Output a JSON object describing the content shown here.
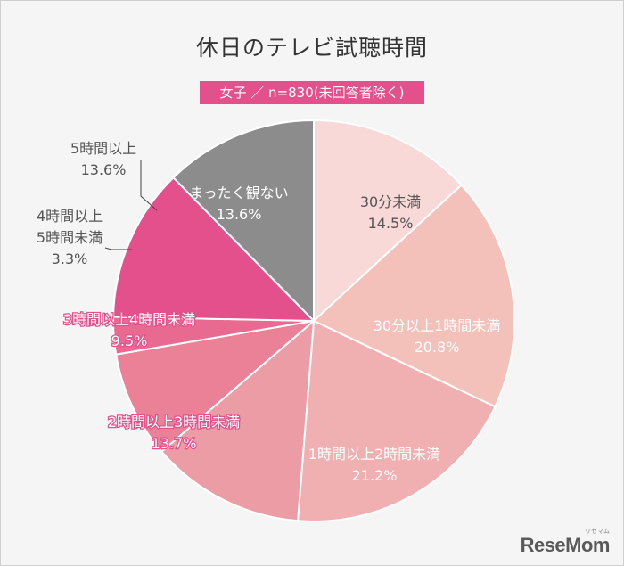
{
  "title": "休日のテレビ試聴時間",
  "subtitle": "女子 ／ n=830(未回答者除く)",
  "logo": "ReseMom",
  "logo_sub": "リセマム",
  "chart_data": {
    "type": "pie",
    "title": "休日のテレビ試聴時間",
    "subtitle": "女子 ／ n=830(未回答者除く)",
    "unit": "%",
    "start_angle_deg": 0,
    "direction": "clockwise",
    "slices": [
      {
        "label": "30分未満",
        "value": 14.5,
        "value_label": "14.5%",
        "color": "#f8d9d8"
      },
      {
        "label": "30分以上1時間未満",
        "value": 20.8,
        "value_label": "20.8%",
        "color": "#f3c1ba"
      },
      {
        "label": "1時間以上2時間未満",
        "value": 21.2,
        "value_label": "21.2%",
        "color": "#f0b0b1"
      },
      {
        "label": "2時間以上3時間未満",
        "value": 13.7,
        "value_label": "13.7%",
        "color": "#ec9ca5"
      },
      {
        "label": "3時間以上4時間未満",
        "value": 9.5,
        "value_label": "9.5%",
        "color": "#ea8197"
      },
      {
        "label": "4時間以上5時間未満",
        "value": 3.3,
        "value_label": "3.3%",
        "color": "#e86a91"
      },
      {
        "label": "5時間以上",
        "value": 13.6,
        "value_label": "13.6%",
        "color": "#e3508c"
      },
      {
        "label": "まったく観ない",
        "value": 13.6,
        "value_label": "13.6%",
        "color": "#8c8c8c"
      }
    ]
  }
}
